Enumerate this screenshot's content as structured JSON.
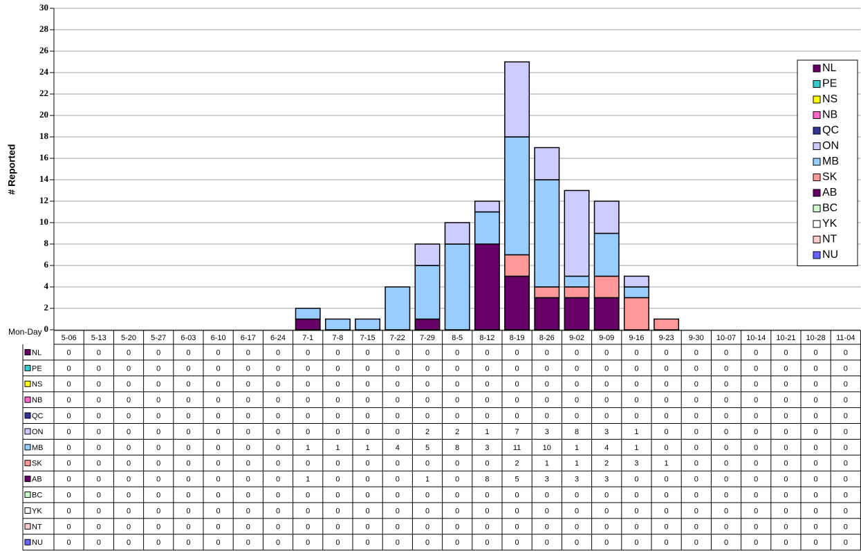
{
  "chart_data": {
    "type": "stacked-bar",
    "y_label": "# Reported",
    "x_label": "Mon-Day",
    "categories": [
      "5-06",
      "5-13",
      "5-20",
      "5-27",
      "6-03",
      "6-10",
      "6-17",
      "6-24",
      "7-1",
      "7-8",
      "7-15",
      "7-22",
      "7-29",
      "8-5",
      "8-12",
      "8-19",
      "8-26",
      "9-02",
      "9-09",
      "9-16",
      "9-23",
      "9-30",
      "10-07",
      "10-14",
      "10-21",
      "10-28",
      "11-04"
    ],
    "series": [
      {
        "name": "NL",
        "color": "#660066",
        "values": [
          0,
          0,
          0,
          0,
          0,
          0,
          0,
          0,
          0,
          0,
          0,
          0,
          0,
          0,
          0,
          0,
          0,
          0,
          0,
          0,
          0,
          0,
          0,
          0,
          0,
          0,
          0
        ]
      },
      {
        "name": "PE",
        "color": "#33cccc",
        "values": [
          0,
          0,
          0,
          0,
          0,
          0,
          0,
          0,
          0,
          0,
          0,
          0,
          0,
          0,
          0,
          0,
          0,
          0,
          0,
          0,
          0,
          0,
          0,
          0,
          0,
          0,
          0
        ]
      },
      {
        "name": "NS",
        "color": "#ffff00",
        "values": [
          0,
          0,
          0,
          0,
          0,
          0,
          0,
          0,
          0,
          0,
          0,
          0,
          0,
          0,
          0,
          0,
          0,
          0,
          0,
          0,
          0,
          0,
          0,
          0,
          0,
          0,
          0
        ]
      },
      {
        "name": "NB",
        "color": "#ff66cc",
        "values": [
          0,
          0,
          0,
          0,
          0,
          0,
          0,
          0,
          0,
          0,
          0,
          0,
          0,
          0,
          0,
          0,
          0,
          0,
          0,
          0,
          0,
          0,
          0,
          0,
          0,
          0,
          0
        ]
      },
      {
        "name": "QC",
        "color": "#333399",
        "values": [
          0,
          0,
          0,
          0,
          0,
          0,
          0,
          0,
          0,
          0,
          0,
          0,
          0,
          0,
          0,
          0,
          0,
          0,
          0,
          0,
          0,
          0,
          0,
          0,
          0,
          0,
          0
        ]
      },
      {
        "name": "ON",
        "color": "#ccccff",
        "values": [
          0,
          0,
          0,
          0,
          0,
          0,
          0,
          0,
          0,
          0,
          0,
          0,
          2,
          2,
          1,
          7,
          3,
          8,
          3,
          1,
          0,
          0,
          0,
          0,
          0,
          0,
          0
        ]
      },
      {
        "name": "MB",
        "color": "#99ccff",
        "values": [
          0,
          0,
          0,
          0,
          0,
          0,
          0,
          0,
          1,
          1,
          1,
          4,
          5,
          8,
          3,
          11,
          10,
          1,
          4,
          1,
          0,
          0,
          0,
          0,
          0,
          0,
          0
        ]
      },
      {
        "name": "SK",
        "color": "#ff9999",
        "values": [
          0,
          0,
          0,
          0,
          0,
          0,
          0,
          0,
          0,
          0,
          0,
          0,
          0,
          0,
          0,
          2,
          1,
          1,
          2,
          3,
          1,
          0,
          0,
          0,
          0,
          0,
          0
        ]
      },
      {
        "name": "AB",
        "color": "#660066",
        "values": [
          0,
          0,
          0,
          0,
          0,
          0,
          0,
          0,
          1,
          0,
          0,
          0,
          1,
          0,
          8,
          5,
          3,
          3,
          3,
          0,
          0,
          0,
          0,
          0,
          0,
          0,
          0
        ]
      },
      {
        "name": "BC",
        "color": "#ccffcc",
        "values": [
          0,
          0,
          0,
          0,
          0,
          0,
          0,
          0,
          0,
          0,
          0,
          0,
          0,
          0,
          0,
          0,
          0,
          0,
          0,
          0,
          0,
          0,
          0,
          0,
          0,
          0,
          0
        ]
      },
      {
        "name": "YK",
        "color": "#ffffff",
        "values": [
          0,
          0,
          0,
          0,
          0,
          0,
          0,
          0,
          0,
          0,
          0,
          0,
          0,
          0,
          0,
          0,
          0,
          0,
          0,
          0,
          0,
          0,
          0,
          0,
          0,
          0,
          0
        ]
      },
      {
        "name": "NT",
        "color": "#ffcccc",
        "values": [
          0,
          0,
          0,
          0,
          0,
          0,
          0,
          0,
          0,
          0,
          0,
          0,
          0,
          0,
          0,
          0,
          0,
          0,
          0,
          0,
          0,
          0,
          0,
          0,
          0,
          0,
          0
        ]
      },
      {
        "name": "NU",
        "color": "#6666ff",
        "values": [
          0,
          0,
          0,
          0,
          0,
          0,
          0,
          0,
          0,
          0,
          0,
          0,
          0,
          0,
          0,
          0,
          0,
          0,
          0,
          0,
          0,
          0,
          0,
          0,
          0,
          0,
          0
        ]
      }
    ],
    "ylim": [
      0,
      30
    ],
    "yticks": [
      0,
      2,
      4,
      6,
      8,
      10,
      12,
      14,
      16,
      18,
      20,
      22,
      24,
      26,
      28,
      30
    ],
    "grid": true,
    "legend": "right"
  }
}
